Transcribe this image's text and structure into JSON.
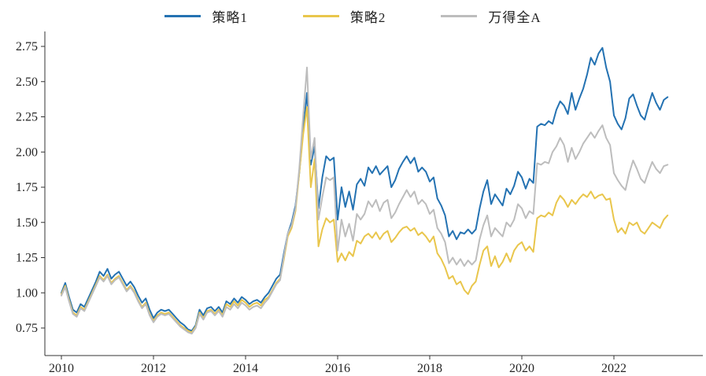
{
  "chart_data": {
    "type": "line",
    "title": "",
    "xlabel": "",
    "ylabel": "",
    "grid": false,
    "legend_position": "top-center",
    "x_axis": {
      "ticks": [
        2010,
        2012,
        2014,
        2016,
        2018,
        2020,
        2022
      ],
      "range": [
        2009.64,
        2023.93
      ]
    },
    "y_axis": {
      "ticks": [
        "0.75",
        "1.00",
        "1.25",
        "1.50",
        "1.75",
        "2.00",
        "2.25",
        "2.50",
        "2.75"
      ],
      "range": [
        0.55,
        2.83
      ]
    },
    "sampling": "monthly",
    "x_start": 2010.0,
    "x_step": 0.0833333,
    "series": [
      {
        "name": "策略1",
        "id": "strategy-1",
        "color": "#2472b2",
        "values": [
          1.0,
          1.07,
          0.97,
          0.88,
          0.86,
          0.92,
          0.9,
          0.96,
          1.02,
          1.08,
          1.15,
          1.12,
          1.17,
          1.1,
          1.13,
          1.15,
          1.1,
          1.05,
          1.08,
          1.04,
          0.98,
          0.93,
          0.96,
          0.88,
          0.82,
          0.86,
          0.88,
          0.87,
          0.88,
          0.85,
          0.82,
          0.79,
          0.77,
          0.74,
          0.73,
          0.77,
          0.88,
          0.84,
          0.89,
          0.9,
          0.87,
          0.9,
          0.86,
          0.94,
          0.92,
          0.96,
          0.93,
          0.97,
          0.95,
          0.92,
          0.94,
          0.95,
          0.93,
          0.97,
          1.0,
          1.05,
          1.1,
          1.13,
          1.28,
          1.42,
          1.5,
          1.62,
          1.85,
          2.15,
          2.42,
          1.91,
          2.04,
          1.6,
          1.82,
          1.97,
          1.94,
          1.96,
          1.52,
          1.75,
          1.61,
          1.72,
          1.59,
          1.77,
          1.81,
          1.76,
          1.89,
          1.85,
          1.9,
          1.84,
          1.87,
          1.9,
          1.75,
          1.8,
          1.88,
          1.93,
          1.97,
          1.92,
          1.96,
          1.86,
          1.89,
          1.86,
          1.79,
          1.82,
          1.67,
          1.62,
          1.55,
          1.4,
          1.44,
          1.38,
          1.43,
          1.42,
          1.45,
          1.42,
          1.45,
          1.6,
          1.72,
          1.8,
          1.63,
          1.7,
          1.66,
          1.62,
          1.74,
          1.7,
          1.76,
          1.86,
          1.82,
          1.74,
          1.81,
          1.78,
          2.18,
          2.2,
          2.19,
          2.22,
          2.2,
          2.3,
          2.36,
          2.33,
          2.27,
          2.42,
          2.3,
          2.38,
          2.45,
          2.55,
          2.67,
          2.62,
          2.7,
          2.74,
          2.6,
          2.5,
          2.26,
          2.2,
          2.16,
          2.24,
          2.38,
          2.41,
          2.33,
          2.26,
          2.23,
          2.33,
          2.42,
          2.35,
          2.3,
          2.37,
          2.39
        ]
      },
      {
        "name": "策略2",
        "id": "strategy-2",
        "color": "#e9c64c",
        "values": [
          0.99,
          1.05,
          0.95,
          0.86,
          0.84,
          0.9,
          0.88,
          0.94,
          1.0,
          1.06,
          1.12,
          1.09,
          1.13,
          1.07,
          1.1,
          1.12,
          1.07,
          1.02,
          1.05,
          1.01,
          0.95,
          0.9,
          0.93,
          0.85,
          0.8,
          0.84,
          0.86,
          0.85,
          0.86,
          0.83,
          0.8,
          0.77,
          0.75,
          0.73,
          0.72,
          0.76,
          0.86,
          0.82,
          0.87,
          0.88,
          0.85,
          0.88,
          0.84,
          0.92,
          0.9,
          0.94,
          0.91,
          0.95,
          0.93,
          0.9,
          0.92,
          0.93,
          0.91,
          0.95,
          0.97,
          1.02,
          1.07,
          1.1,
          1.24,
          1.4,
          1.46,
          1.58,
          1.85,
          2.12,
          2.32,
          1.75,
          1.95,
          1.33,
          1.45,
          1.53,
          1.5,
          1.52,
          1.22,
          1.28,
          1.23,
          1.29,
          1.26,
          1.37,
          1.35,
          1.4,
          1.42,
          1.39,
          1.43,
          1.38,
          1.42,
          1.44,
          1.36,
          1.39,
          1.43,
          1.46,
          1.47,
          1.44,
          1.46,
          1.41,
          1.43,
          1.4,
          1.36,
          1.4,
          1.28,
          1.24,
          1.18,
          1.1,
          1.12,
          1.06,
          1.08,
          1.02,
          0.99,
          1.05,
          1.08,
          1.2,
          1.3,
          1.33,
          1.19,
          1.26,
          1.18,
          1.22,
          1.28,
          1.22,
          1.3,
          1.34,
          1.36,
          1.3,
          1.33,
          1.29,
          1.53,
          1.55,
          1.54,
          1.57,
          1.55,
          1.64,
          1.69,
          1.66,
          1.61,
          1.66,
          1.63,
          1.67,
          1.7,
          1.68,
          1.72,
          1.67,
          1.69,
          1.7,
          1.66,
          1.67,
          1.52,
          1.43,
          1.46,
          1.42,
          1.5,
          1.48,
          1.5,
          1.44,
          1.42,
          1.46,
          1.5,
          1.48,
          1.46,
          1.52,
          1.55
        ]
      },
      {
        "name": "万得全A",
        "id": "wind-all-a",
        "color": "#bdbdbd",
        "values": [
          0.98,
          1.04,
          0.94,
          0.85,
          0.83,
          0.89,
          0.87,
          0.93,
          0.99,
          1.05,
          1.11,
          1.08,
          1.12,
          1.06,
          1.09,
          1.11,
          1.06,
          1.01,
          1.04,
          1.0,
          0.94,
          0.89,
          0.92,
          0.84,
          0.79,
          0.83,
          0.85,
          0.84,
          0.85,
          0.82,
          0.79,
          0.76,
          0.74,
          0.72,
          0.71,
          0.75,
          0.85,
          0.81,
          0.86,
          0.87,
          0.84,
          0.87,
          0.83,
          0.9,
          0.88,
          0.92,
          0.89,
          0.93,
          0.91,
          0.88,
          0.9,
          0.91,
          0.89,
          0.93,
          0.96,
          1.01,
          1.06,
          1.09,
          1.26,
          1.42,
          1.48,
          1.6,
          1.88,
          2.25,
          2.6,
          1.95,
          2.1,
          1.52,
          1.68,
          1.82,
          1.8,
          1.82,
          1.3,
          1.52,
          1.4,
          1.49,
          1.37,
          1.56,
          1.52,
          1.56,
          1.65,
          1.61,
          1.66,
          1.58,
          1.64,
          1.66,
          1.53,
          1.57,
          1.63,
          1.68,
          1.73,
          1.68,
          1.72,
          1.63,
          1.66,
          1.63,
          1.56,
          1.59,
          1.46,
          1.42,
          1.36,
          1.21,
          1.25,
          1.2,
          1.24,
          1.19,
          1.23,
          1.2,
          1.23,
          1.38,
          1.48,
          1.55,
          1.4,
          1.46,
          1.43,
          1.4,
          1.5,
          1.47,
          1.52,
          1.63,
          1.6,
          1.53,
          1.58,
          1.56,
          1.92,
          1.91,
          1.93,
          1.92,
          2.0,
          2.04,
          2.1,
          2.05,
          1.93,
          2.03,
          1.95,
          2.0,
          2.06,
          2.1,
          2.14,
          2.1,
          2.15,
          2.19,
          2.1,
          2.05,
          1.85,
          1.8,
          1.76,
          1.73,
          1.85,
          1.94,
          1.88,
          1.81,
          1.78,
          1.86,
          1.93,
          1.88,
          1.85,
          1.9,
          1.91
        ]
      }
    ]
  },
  "style": {
    "axis_color": "#333333",
    "tick_label_color": "#262626"
  }
}
